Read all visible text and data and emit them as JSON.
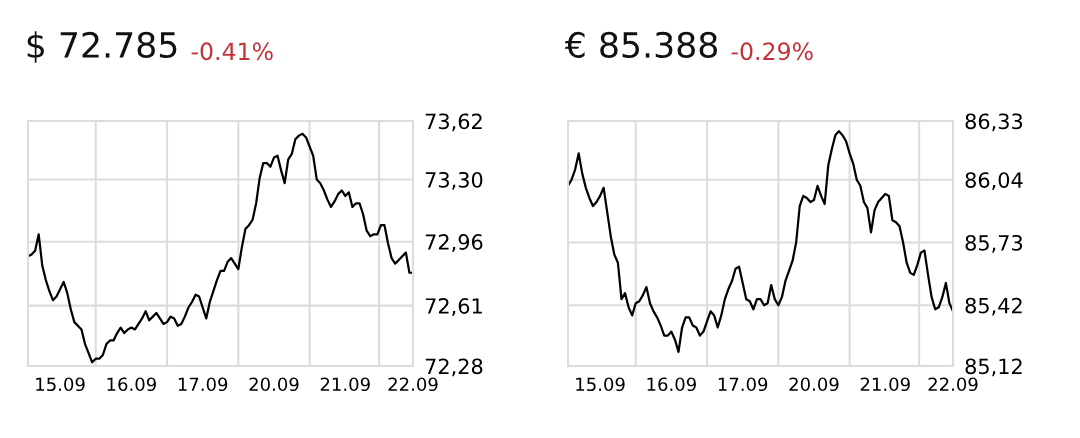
{
  "chart_data": [
    {
      "type": "line",
      "title": "$ 72.785",
      "subtitle": "-0.41%",
      "grid": true,
      "marker": "none",
      "line_style": "solid",
      "categories": [
        null,
        null,
        null,
        null,
        null,
        null,
        null,
        null,
        null,
        "15.09",
        null,
        null,
        null,
        null,
        null,
        null,
        null,
        null,
        null,
        null,
        null,
        null,
        null,
        null,
        null,
        null,
        null,
        null,
        null,
        "16.09",
        null,
        null,
        null,
        null,
        null,
        null,
        null,
        null,
        null,
        null,
        null,
        null,
        null,
        null,
        null,
        null,
        null,
        null,
        null,
        "17.09",
        null,
        null,
        null,
        null,
        null,
        null,
        null,
        null,
        null,
        null,
        null,
        null,
        null,
        null,
        null,
        null,
        null,
        null,
        null,
        "20.09",
        null,
        null,
        null,
        null,
        null,
        null,
        null,
        null,
        null,
        null,
        null,
        null,
        null,
        null,
        null,
        null,
        null,
        null,
        null,
        "21.09",
        null,
        null,
        null,
        null,
        null,
        null,
        null,
        null,
        null,
        null,
        null,
        null,
        null,
        null,
        null,
        null,
        null,
        null,
        "22.09"
      ],
      "ylim": [
        72.28,
        73.62
      ],
      "yticks": [
        {
          "value": 72.28,
          "label": "72,28"
        },
        {
          "value": 72.61,
          "label": "72,61"
        },
        {
          "value": 72.96,
          "label": "72,96"
        },
        {
          "value": 73.3,
          "label": "73,30"
        },
        {
          "value": 73.62,
          "label": "73,62"
        }
      ],
      "series": [
        {
          "color": "#000000",
          "values": [
            72.88,
            72.89,
            72.91,
            73.0,
            72.83,
            72.75,
            72.69,
            72.64,
            72.66,
            72.7,
            72.74,
            72.68,
            72.59,
            72.52,
            72.5,
            72.48,
            72.4,
            72.35,
            72.3,
            72.32,
            72.32,
            72.34,
            72.4,
            72.42,
            72.42,
            72.46,
            72.49,
            72.46,
            72.48,
            72.49,
            72.48,
            72.51,
            72.54,
            72.58,
            72.53,
            72.55,
            72.57,
            72.54,
            72.51,
            72.52,
            72.55,
            72.54,
            72.5,
            72.51,
            72.55,
            72.6,
            72.63,
            72.67,
            72.66,
            72.6,
            72.54,
            72.63,
            72.69,
            72.75,
            72.8,
            72.8,
            72.85,
            72.87,
            72.84,
            72.81,
            72.93,
            73.03,
            73.05,
            73.08,
            73.17,
            73.31,
            73.39,
            73.39,
            73.37,
            73.42,
            73.43,
            73.35,
            73.28,
            73.41,
            73.44,
            73.52,
            73.54,
            73.55,
            73.53,
            73.48,
            73.43,
            73.3,
            73.28,
            73.24,
            73.19,
            73.15,
            73.18,
            73.22,
            73.24,
            73.21,
            73.23,
            73.15,
            73.17,
            73.17,
            73.11,
            73.02,
            72.99,
            73.0,
            73.0,
            73.05,
            73.05,
            72.95,
            72.87,
            72.84,
            72.86,
            72.88,
            72.9,
            72.79,
            72.79
          ]
        }
      ]
    },
    {
      "type": "line",
      "title": "€ 85.388",
      "subtitle": "-0.29%",
      "grid": true,
      "marker": "none",
      "line_style": "solid",
      "categories": [
        null,
        null,
        null,
        null,
        null,
        null,
        null,
        null,
        null,
        "15.09",
        null,
        null,
        null,
        null,
        null,
        null,
        null,
        null,
        null,
        null,
        null,
        null,
        null,
        null,
        null,
        null,
        null,
        null,
        null,
        "16.09",
        null,
        null,
        null,
        null,
        null,
        null,
        null,
        null,
        null,
        null,
        null,
        null,
        null,
        null,
        null,
        null,
        null,
        null,
        null,
        "17.09",
        null,
        null,
        null,
        null,
        null,
        null,
        null,
        null,
        null,
        null,
        null,
        null,
        null,
        null,
        null,
        null,
        null,
        null,
        null,
        "20.09",
        null,
        null,
        null,
        null,
        null,
        null,
        null,
        null,
        null,
        null,
        null,
        null,
        null,
        null,
        null,
        null,
        null,
        null,
        null,
        "21.09",
        null,
        null,
        null,
        null,
        null,
        null,
        null,
        null,
        null,
        null,
        null,
        null,
        null,
        null,
        null,
        null,
        null,
        null,
        "22.09"
      ],
      "ylim": [
        85.12,
        86.33
      ],
      "yticks": [
        {
          "value": 85.12,
          "label": "85,12"
        },
        {
          "value": 85.42,
          "label": "85,42"
        },
        {
          "value": 85.73,
          "label": "85,73"
        },
        {
          "value": 86.04,
          "label": "86,04"
        },
        {
          "value": 86.33,
          "label": "86,33"
        }
      ],
      "series": [
        {
          "color": "#000000",
          "values": [
            86.01,
            86.04,
            86.09,
            86.17,
            86.07,
            86.0,
            85.95,
            85.91,
            85.93,
            85.96,
            86.0,
            85.88,
            85.76,
            85.67,
            85.63,
            85.45,
            85.48,
            85.41,
            85.37,
            85.43,
            85.44,
            85.47,
            85.51,
            85.43,
            85.39,
            85.36,
            85.32,
            85.27,
            85.27,
            85.29,
            85.25,
            85.19,
            85.31,
            85.36,
            85.36,
            85.32,
            85.31,
            85.27,
            85.29,
            85.34,
            85.39,
            85.37,
            85.31,
            85.37,
            85.45,
            85.5,
            85.54,
            85.6,
            85.61,
            85.53,
            85.45,
            85.44,
            85.4,
            85.45,
            85.45,
            85.42,
            85.43,
            85.52,
            85.45,
            85.42,
            85.46,
            85.54,
            85.59,
            85.64,
            85.73,
            85.91,
            85.96,
            85.95,
            85.93,
            85.94,
            86.01,
            85.96,
            85.92,
            86.11,
            86.19,
            86.26,
            86.28,
            86.26,
            86.23,
            86.17,
            86.12,
            86.04,
            86.01,
            85.93,
            85.9,
            85.78,
            85.89,
            85.93,
            85.95,
            85.97,
            85.96,
            85.84,
            85.83,
            85.81,
            85.73,
            85.63,
            85.58,
            85.57,
            85.62,
            85.68,
            85.69,
            85.57,
            85.46,
            85.4,
            85.41,
            85.46,
            85.53,
            85.43,
            85.39
          ]
        }
      ]
    }
  ]
}
